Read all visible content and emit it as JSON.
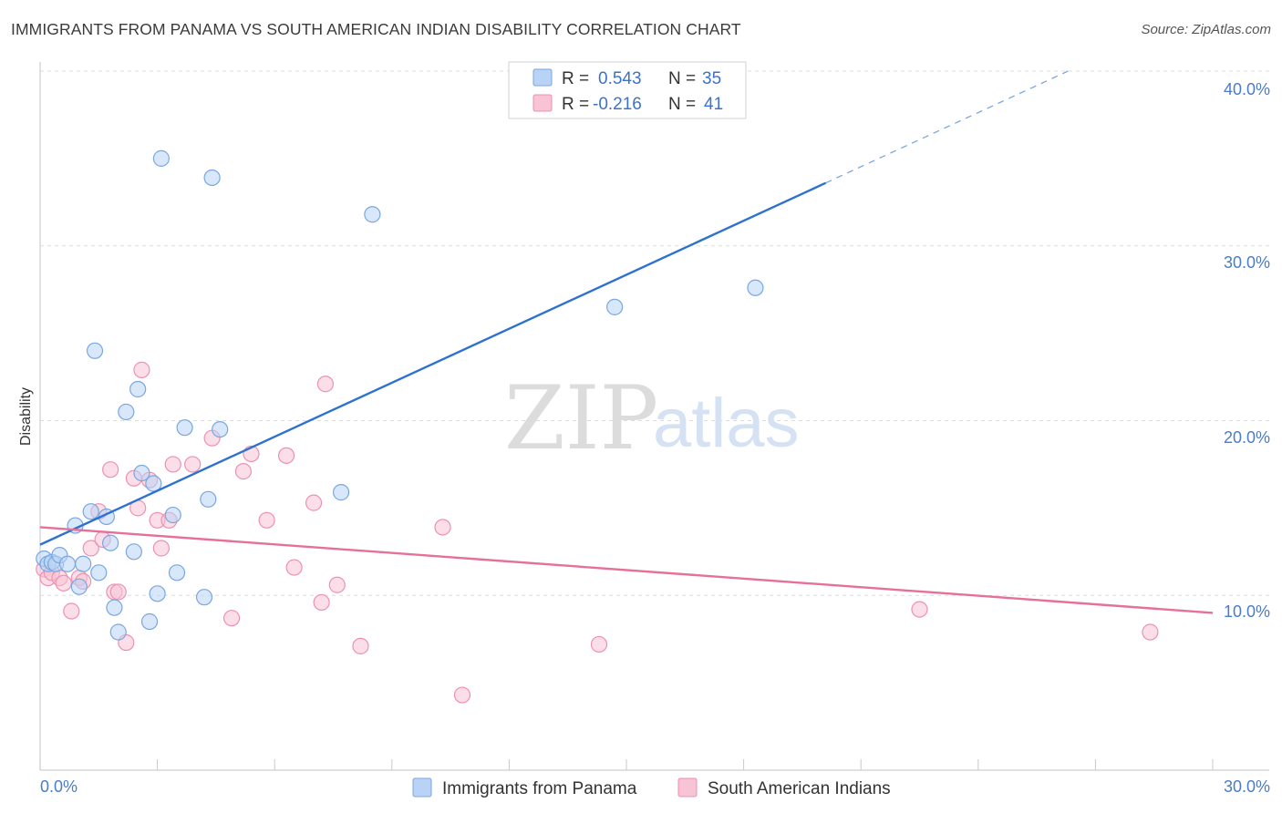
{
  "title": "IMMIGRANTS FROM PANAMA VS SOUTH AMERICAN INDIAN DISABILITY CORRELATION CHART",
  "source": "Source: ZipAtlas.com",
  "watermark": {
    "zip": "ZIP",
    "atlas": "atlas"
  },
  "colors": {
    "blue_fill": "#b8d3f5",
    "blue_stroke": "#7aa7df",
    "blue_line": "#2e72cf",
    "pink_fill": "#f8c3d4",
    "pink_stroke": "#ec92b0",
    "pink_line": "#e5709a",
    "tick_text": "#4a7cc9",
    "grid": "#dddddd"
  },
  "legend": {
    "rows": [
      {
        "r_label": "R =",
        "r_value": "0.543",
        "n_label": "N =",
        "n_value": "35"
      },
      {
        "r_label": "R =",
        "r_value": "-0.216",
        "n_label": "N =",
        "n_value": "41"
      }
    ]
  },
  "chart_data": {
    "type": "scatter",
    "title": "IMMIGRANTS FROM PANAMA VS SOUTH AMERICAN INDIAN DISABILITY CORRELATION CHART",
    "xlabel": "",
    "ylabel": "Disability",
    "xlim": [
      0,
      30
    ],
    "ylim": [
      0,
      40
    ],
    "x_tick_labels": [
      "0.0%",
      "30.0%"
    ],
    "y_ticks": [
      10,
      20,
      30,
      40
    ],
    "y_tick_labels": [
      "10.0%",
      "20.0%",
      "30.0%",
      "40.0%"
    ],
    "grid": true,
    "legend_position": "top-center",
    "series": [
      {
        "name": "Immigrants from Panama",
        "color": "blue",
        "points": [
          [
            0.1,
            12.1
          ],
          [
            0.2,
            11.8
          ],
          [
            0.3,
            11.9
          ],
          [
            0.4,
            11.8
          ],
          [
            0.5,
            12.3
          ],
          [
            0.7,
            11.8
          ],
          [
            0.9,
            14.0
          ],
          [
            1.0,
            10.5
          ],
          [
            1.1,
            11.8
          ],
          [
            1.3,
            14.8
          ],
          [
            1.4,
            24.0
          ],
          [
            1.5,
            11.3
          ],
          [
            1.7,
            14.5
          ],
          [
            1.8,
            13.0
          ],
          [
            1.9,
            9.3
          ],
          [
            2.0,
            7.9
          ],
          [
            2.2,
            20.5
          ],
          [
            2.4,
            12.5
          ],
          [
            2.5,
            21.8
          ],
          [
            2.6,
            17.0
          ],
          [
            2.8,
            8.5
          ],
          [
            2.9,
            16.4
          ],
          [
            3.0,
            10.1
          ],
          [
            3.1,
            35.0
          ],
          [
            3.4,
            14.6
          ],
          [
            3.5,
            11.3
          ],
          [
            3.7,
            19.6
          ],
          [
            4.2,
            9.9
          ],
          [
            4.3,
            15.5
          ],
          [
            4.4,
            33.9
          ],
          [
            4.6,
            19.5
          ],
          [
            7.7,
            15.9
          ],
          [
            8.5,
            31.8
          ],
          [
            14.7,
            26.5
          ],
          [
            18.3,
            27.6
          ]
        ],
        "trend": {
          "x0": 0,
          "y0": 12.9,
          "x1": 20.1,
          "y1": 33.6,
          "dash_to_x": 26.3,
          "dash_to_y": 40.0
        }
      },
      {
        "name": "South American Indians",
        "color": "pink",
        "points": [
          [
            0.1,
            11.5
          ],
          [
            0.2,
            11.0
          ],
          [
            0.3,
            11.3
          ],
          [
            0.5,
            11.0
          ],
          [
            0.6,
            10.7
          ],
          [
            0.8,
            9.1
          ],
          [
            1.0,
            11.0
          ],
          [
            1.1,
            10.8
          ],
          [
            1.3,
            12.7
          ],
          [
            1.5,
            14.8
          ],
          [
            1.6,
            13.2
          ],
          [
            1.8,
            17.2
          ],
          [
            1.9,
            10.2
          ],
          [
            2.0,
            10.2
          ],
          [
            2.2,
            7.3
          ],
          [
            2.4,
            16.7
          ],
          [
            2.5,
            15.0
          ],
          [
            2.6,
            22.9
          ],
          [
            2.8,
            16.6
          ],
          [
            3.0,
            14.3
          ],
          [
            3.1,
            12.7
          ],
          [
            3.3,
            14.3
          ],
          [
            3.4,
            17.5
          ],
          [
            3.9,
            17.5
          ],
          [
            4.4,
            19.0
          ],
          [
            4.9,
            8.7
          ],
          [
            5.2,
            17.1
          ],
          [
            5.4,
            18.1
          ],
          [
            5.8,
            14.3
          ],
          [
            6.3,
            18.0
          ],
          [
            6.5,
            11.6
          ],
          [
            7.0,
            15.3
          ],
          [
            7.2,
            9.6
          ],
          [
            7.3,
            22.1
          ],
          [
            7.6,
            10.6
          ],
          [
            8.2,
            7.1
          ],
          [
            10.3,
            13.9
          ],
          [
            10.8,
            4.3
          ],
          [
            14.3,
            7.2
          ],
          [
            22.5,
            9.2
          ],
          [
            28.4,
            7.9
          ]
        ],
        "trend": {
          "x0": 0,
          "y0": 13.9,
          "x1": 30,
          "y1": 9.0
        }
      }
    ]
  }
}
